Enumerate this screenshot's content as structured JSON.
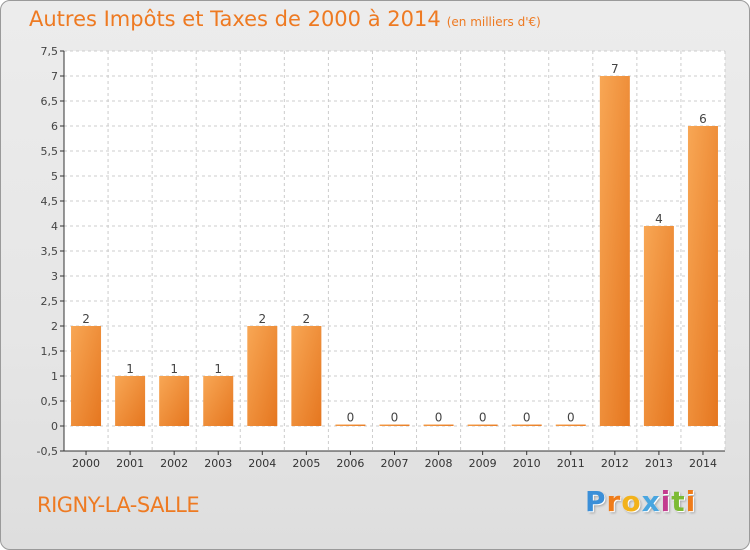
{
  "header": {
    "title": "Autres Impôts et Taxes de 2000 à 2014",
    "unit": "(en milliers d'€)"
  },
  "footer": {
    "town": "RIGNY-LA-SALLE",
    "logo_letters": [
      "P",
      "r",
      "o",
      "x",
      "i",
      "t",
      "i"
    ],
    "logo_colors": [
      "#3b8fd8",
      "#ef7c1a",
      "#f2b21b",
      "#49a6e0",
      "#c33c8e",
      "#7dbb33",
      "#ef7c1a"
    ]
  },
  "colors": {
    "bar_light": "#f8a755",
    "bar_dark": "#e5761f",
    "accent": "#ee7a22",
    "grid": "#cccccc",
    "axis": "#333333"
  },
  "chart_data": {
    "type": "bar",
    "categories": [
      "2000",
      "2001",
      "2002",
      "2003",
      "2004",
      "2005",
      "2006",
      "2007",
      "2008",
      "2009",
      "2010",
      "2011",
      "2012",
      "2013",
      "2014"
    ],
    "values": [
      2,
      1,
      1,
      1,
      2,
      2,
      0,
      0,
      0,
      0,
      0,
      0,
      7,
      4,
      6
    ],
    "data_labels": [
      "2",
      "1",
      "1",
      "1",
      "2",
      "2",
      "0",
      "0",
      "0",
      "0",
      "0",
      "0",
      "7",
      "4",
      "6"
    ],
    "ylim": [
      -0.5,
      7.5
    ],
    "yticks": [
      "-0,5",
      "0",
      "0,5",
      "1",
      "1,5",
      "2",
      "2,5",
      "3",
      "3,5",
      "4",
      "4,5",
      "5",
      "5,5",
      "6",
      "6,5",
      "7",
      "7,5"
    ],
    "ytick_values": [
      -0.5,
      0,
      0.5,
      1,
      1.5,
      2,
      2.5,
      3,
      3.5,
      4,
      4.5,
      5,
      5.5,
      6,
      6.5,
      7,
      7.5
    ],
    "grid": true,
    "legend": "none"
  }
}
